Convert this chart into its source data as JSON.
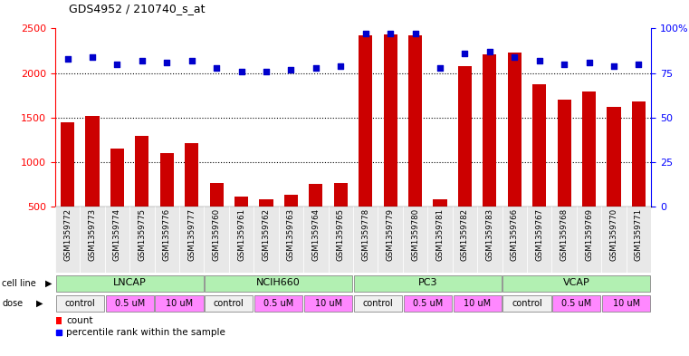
{
  "title": "GDS4952 / 210740_s_at",
  "samples": [
    "GSM1359772",
    "GSM1359773",
    "GSM1359774",
    "GSM1359775",
    "GSM1359776",
    "GSM1359777",
    "GSM1359760",
    "GSM1359761",
    "GSM1359762",
    "GSM1359763",
    "GSM1359764",
    "GSM1359765",
    "GSM1359778",
    "GSM1359779",
    "GSM1359780",
    "GSM1359781",
    "GSM1359782",
    "GSM1359783",
    "GSM1359766",
    "GSM1359767",
    "GSM1359768",
    "GSM1359769",
    "GSM1359770",
    "GSM1359771"
  ],
  "counts": [
    1450,
    1520,
    1150,
    1290,
    1100,
    1210,
    760,
    610,
    580,
    630,
    750,
    760,
    2420,
    2430,
    2420,
    580,
    2080,
    2210,
    2230,
    1870,
    1700,
    1790,
    1620,
    1680
  ],
  "percentile_ranks": [
    83,
    84,
    80,
    82,
    81,
    82,
    78,
    76,
    76,
    77,
    78,
    79,
    97,
    97,
    97,
    78,
    86,
    87,
    84,
    82,
    80,
    81,
    79,
    80
  ],
  "cell_lines": [
    {
      "name": "LNCAP",
      "start": 0,
      "end": 6,
      "color": "#b2f0b2"
    },
    {
      "name": "NCIH660",
      "start": 6,
      "end": 12,
      "color": "#b2f0b2"
    },
    {
      "name": "PC3",
      "start": 12,
      "end": 18,
      "color": "#b2f0b2"
    },
    {
      "name": "VCAP",
      "start": 18,
      "end": 24,
      "color": "#b2f0b2"
    }
  ],
  "dose_groups": [
    {
      "label": "control",
      "start": 0,
      "end": 2,
      "color": "#f0f0f0"
    },
    {
      "label": "0.5 uM",
      "start": 2,
      "end": 4,
      "color": "#FF88FF"
    },
    {
      "label": "10 uM",
      "start": 4,
      "end": 6,
      "color": "#FF88FF"
    },
    {
      "label": "control",
      "start": 6,
      "end": 8,
      "color": "#f0f0f0"
    },
    {
      "label": "0.5 uM",
      "start": 8,
      "end": 10,
      "color": "#FF88FF"
    },
    {
      "label": "10 uM",
      "start": 10,
      "end": 12,
      "color": "#FF88FF"
    },
    {
      "label": "control",
      "start": 12,
      "end": 14,
      "color": "#f0f0f0"
    },
    {
      "label": "0.5 uM",
      "start": 14,
      "end": 16,
      "color": "#FF88FF"
    },
    {
      "label": "10 uM",
      "start": 16,
      "end": 18,
      "color": "#FF88FF"
    },
    {
      "label": "control",
      "start": 18,
      "end": 20,
      "color": "#f0f0f0"
    },
    {
      "label": "0.5 uM",
      "start": 20,
      "end": 22,
      "color": "#FF88FF"
    },
    {
      "label": "10 uM",
      "start": 22,
      "end": 24,
      "color": "#FF88FF"
    }
  ],
  "bar_color": "#CC0000",
  "dot_color": "#0000CC",
  "ylim_left": [
    500,
    2500
  ],
  "ylim_right": [
    0,
    100
  ],
  "yticks_left": [
    500,
    1000,
    1500,
    2000,
    2500
  ],
  "yticks_right": [
    0,
    25,
    50,
    75,
    100
  ],
  "grid_values": [
    1000,
    1500,
    2000
  ],
  "background_color": "#ffffff"
}
